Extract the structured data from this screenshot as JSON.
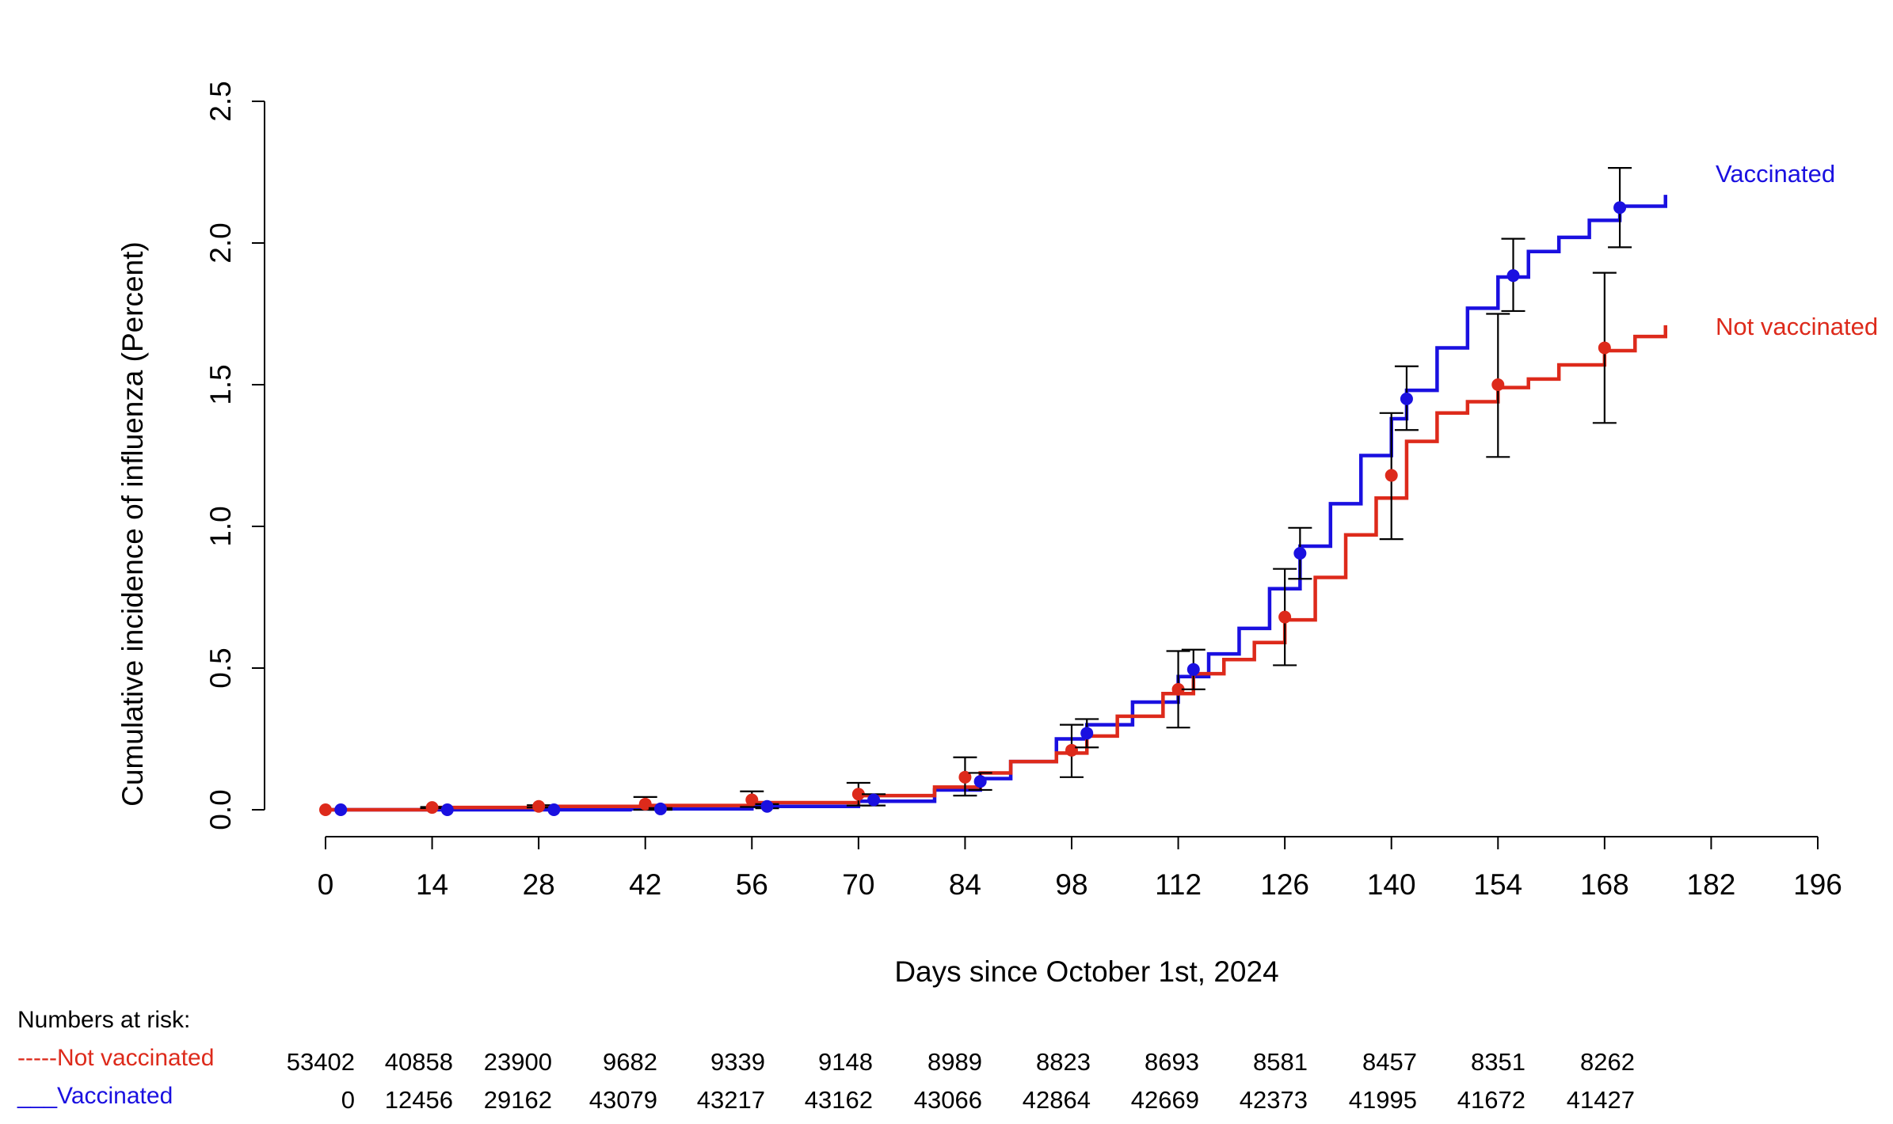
{
  "chart_data": {
    "type": "line",
    "step": true,
    "xlabel": "Days since October 1st, 2024",
    "ylabel": "Cumulative incidence of influenza (Percent)",
    "xlim": [
      0,
      196
    ],
    "ylim": [
      0,
      2.5
    ],
    "x_ticks": [
      "0",
      "14",
      "28",
      "42",
      "56",
      "70",
      "84",
      "98",
      "112",
      "126",
      "140",
      "154",
      "168",
      "182",
      "196"
    ],
    "y_ticks": [
      "0.0",
      "0.5",
      "1.0",
      "1.5",
      "2.0",
      "2.5"
    ],
    "grid": false,
    "colors": {
      "not_vaccinated": "#dd2a1b",
      "vaccinated": "#1a10e0",
      "error_bar": "#000000"
    },
    "series": [
      {
        "name": "Vaccinated",
        "color": "#1a10e0",
        "x": [
          0,
          40,
          56,
          70,
          80,
          86,
          90,
          96,
          100,
          106,
          112,
          116,
          120,
          124,
          128,
          132,
          136,
          140,
          142,
          146,
          150,
          154,
          158,
          162,
          166,
          170,
          176
        ],
        "y": [
          0,
          0.003,
          0.012,
          0.03,
          0.07,
          0.11,
          0.17,
          0.25,
          0.3,
          0.38,
          0.47,
          0.55,
          0.64,
          0.78,
          0.93,
          1.08,
          1.25,
          1.38,
          1.48,
          1.63,
          1.77,
          1.88,
          1.97,
          2.02,
          2.08,
          2.13,
          2.17
        ]
      },
      {
        "name": "Not vaccinated",
        "color": "#dd2a1b",
        "x": [
          0,
          14,
          28,
          42,
          56,
          70,
          80,
          86,
          90,
          96,
          100,
          104,
          110,
          114,
          118,
          122,
          126,
          130,
          134,
          138,
          142,
          146,
          150,
          154,
          158,
          162,
          168,
          172,
          176
        ],
        "y": [
          0,
          0.008,
          0.012,
          0.015,
          0.025,
          0.05,
          0.08,
          0.13,
          0.17,
          0.2,
          0.26,
          0.33,
          0.41,
          0.48,
          0.53,
          0.59,
          0.67,
          0.82,
          0.97,
          1.1,
          1.3,
          1.4,
          1.44,
          1.49,
          1.52,
          1.57,
          1.62,
          1.67,
          1.71
        ]
      }
    ],
    "error_bars": [
      {
        "series": "Not vaccinated",
        "x": 0,
        "y": 0,
        "lo": 0,
        "hi": 0
      },
      {
        "series": "Not vaccinated",
        "x": 14,
        "y": 0.008,
        "lo": 0.006,
        "hi": 0.01
      },
      {
        "series": "Not vaccinated",
        "x": 28,
        "y": 0.012,
        "lo": 0.008,
        "hi": 0.016
      },
      {
        "series": "Not vaccinated",
        "x": 42,
        "y": 0.02,
        "lo": 0.0,
        "hi": 0.045
      },
      {
        "series": "Not vaccinated",
        "x": 56,
        "y": 0.035,
        "lo": 0.01,
        "hi": 0.065
      },
      {
        "series": "Not vaccinated",
        "x": 70,
        "y": 0.055,
        "lo": 0.015,
        "hi": 0.095
      },
      {
        "series": "Not vaccinated",
        "x": 84,
        "y": 0.115,
        "lo": 0.05,
        "hi": 0.185
      },
      {
        "series": "Not vaccinated",
        "x": 98,
        "y": 0.21,
        "lo": 0.115,
        "hi": 0.3
      },
      {
        "series": "Not vaccinated",
        "x": 112,
        "y": 0.425,
        "lo": 0.29,
        "hi": 0.56
      },
      {
        "series": "Not vaccinated",
        "x": 126,
        "y": 0.68,
        "lo": 0.51,
        "hi": 0.85
      },
      {
        "series": "Not vaccinated",
        "x": 140,
        "y": 1.18,
        "lo": 0.955,
        "hi": 1.4
      },
      {
        "series": "Not vaccinated",
        "x": 154,
        "y": 1.5,
        "lo": 1.245,
        "hi": 1.75
      },
      {
        "series": "Not vaccinated",
        "x": 168,
        "y": 1.63,
        "lo": 1.365,
        "hi": 1.895
      },
      {
        "series": "Vaccinated",
        "x": 2,
        "y": 0.0,
        "lo": 0.0,
        "hi": 0.0
      },
      {
        "series": "Vaccinated",
        "x": 16,
        "y": 0.0,
        "lo": 0.0,
        "hi": 0.0
      },
      {
        "series": "Vaccinated",
        "x": 30,
        "y": 0.0,
        "lo": 0.0,
        "hi": 0.0
      },
      {
        "series": "Vaccinated",
        "x": 44,
        "y": 0.003,
        "lo": 0.0,
        "hi": 0.006
      },
      {
        "series": "Vaccinated",
        "x": 58,
        "y": 0.012,
        "lo": 0.005,
        "hi": 0.02
      },
      {
        "series": "Vaccinated",
        "x": 72,
        "y": 0.035,
        "lo": 0.015,
        "hi": 0.055
      },
      {
        "series": "Vaccinated",
        "x": 86,
        "y": 0.1,
        "lo": 0.07,
        "hi": 0.13
      },
      {
        "series": "Vaccinated",
        "x": 100,
        "y": 0.27,
        "lo": 0.22,
        "hi": 0.32
      },
      {
        "series": "Vaccinated",
        "x": 114,
        "y": 0.495,
        "lo": 0.425,
        "hi": 0.565
      },
      {
        "series": "Vaccinated",
        "x": 128,
        "y": 0.905,
        "lo": 0.815,
        "hi": 0.995
      },
      {
        "series": "Vaccinated",
        "x": 142,
        "y": 1.45,
        "lo": 1.34,
        "hi": 1.565
      },
      {
        "series": "Vaccinated",
        "x": 156,
        "y": 1.885,
        "lo": 1.76,
        "hi": 2.015
      },
      {
        "series": "Vaccinated",
        "x": 170,
        "y": 2.125,
        "lo": 1.985,
        "hi": 2.265
      }
    ],
    "series_labels": [
      {
        "text": "Vaccinated",
        "color": "#1a10e0"
      },
      {
        "text": "Not vaccinated",
        "color": "#dd2a1b"
      }
    ]
  },
  "risk_table": {
    "title": "Numbers at risk:",
    "rows": [
      {
        "label": "-----Not vaccinated",
        "color": "#dd2a1b",
        "values": [
          "53402",
          "40858",
          "23900",
          "9682",
          "9339",
          "9148",
          "8989",
          "8823",
          "8693",
          "8581",
          "8457",
          "8351",
          "8262"
        ]
      },
      {
        "label": "___Vaccinated",
        "color": "#1a10e0",
        "values": [
          "0",
          "12456",
          "29162",
          "43079",
          "43217",
          "43162",
          "43066",
          "42864",
          "42669",
          "42373",
          "41995",
          "41672",
          "41427"
        ]
      }
    ]
  }
}
